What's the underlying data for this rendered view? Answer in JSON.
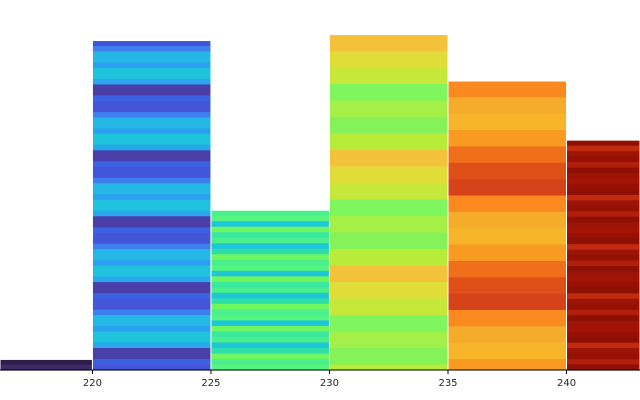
{
  "chart_data": {
    "type": "bar",
    "title": "",
    "xlabel": "",
    "ylabel": "",
    "x_ticks": [
      220,
      225,
      230,
      235,
      240
    ],
    "x_tick_labels": [
      "220",
      "225",
      "230",
      "235",
      "240"
    ],
    "xlim": [
      216.1,
      243.1
    ],
    "ylim": [
      0,
      100
    ],
    "grid": false,
    "legend": "none",
    "bars": [
      {
        "x_start": 215,
        "x_end": 220,
        "value": 3.0,
        "color": "#2e1d4b",
        "stripes": [
          "#2e1d4b",
          "#3b2a66"
        ]
      },
      {
        "x_start": 220,
        "x_end": 225,
        "value": 93.6,
        "color": "#2a9ae8",
        "stripes": [
          "#2b9ff0",
          "#25b8e6",
          "#3d7ff0",
          "#4355d8",
          "#3a63e2",
          "#4a3fa8",
          "#2aa6ee",
          "#1fc3dd"
        ]
      },
      {
        "x_start": 225,
        "x_end": 230,
        "value": 45.4,
        "color": "#4cf08a",
        "stripes": [
          "#4bef8c",
          "#55f582",
          "#1ec7d8",
          "#2ee0a8",
          "#6ef760",
          "#39e9a0"
        ]
      },
      {
        "x_start": 230,
        "x_end": 235,
        "value": 95.3,
        "color": "#86f25a",
        "stripes": [
          "#86f25a",
          "#b8ec3a",
          "#f4c23a",
          "#e0dd38",
          "#c6e83a",
          "#7ff55e",
          "#a4f048"
        ]
      },
      {
        "x_start": 235,
        "x_end": 240,
        "value": 82.1,
        "color": "#f5901c",
        "stripes": [
          "#f7b52a",
          "#f99a22",
          "#ef6f1a",
          "#e04f18",
          "#d6421a",
          "#fa8a20",
          "#f4ac2a"
        ]
      },
      {
        "x_start": 240,
        "x_end": 245,
        "value": 65.3,
        "color": "#a01206",
        "stripes": [
          "#a41306",
          "#961004",
          "#b21e0c",
          "#8e0f04",
          "#c22a10",
          "#9c1405"
        ]
      }
    ]
  }
}
